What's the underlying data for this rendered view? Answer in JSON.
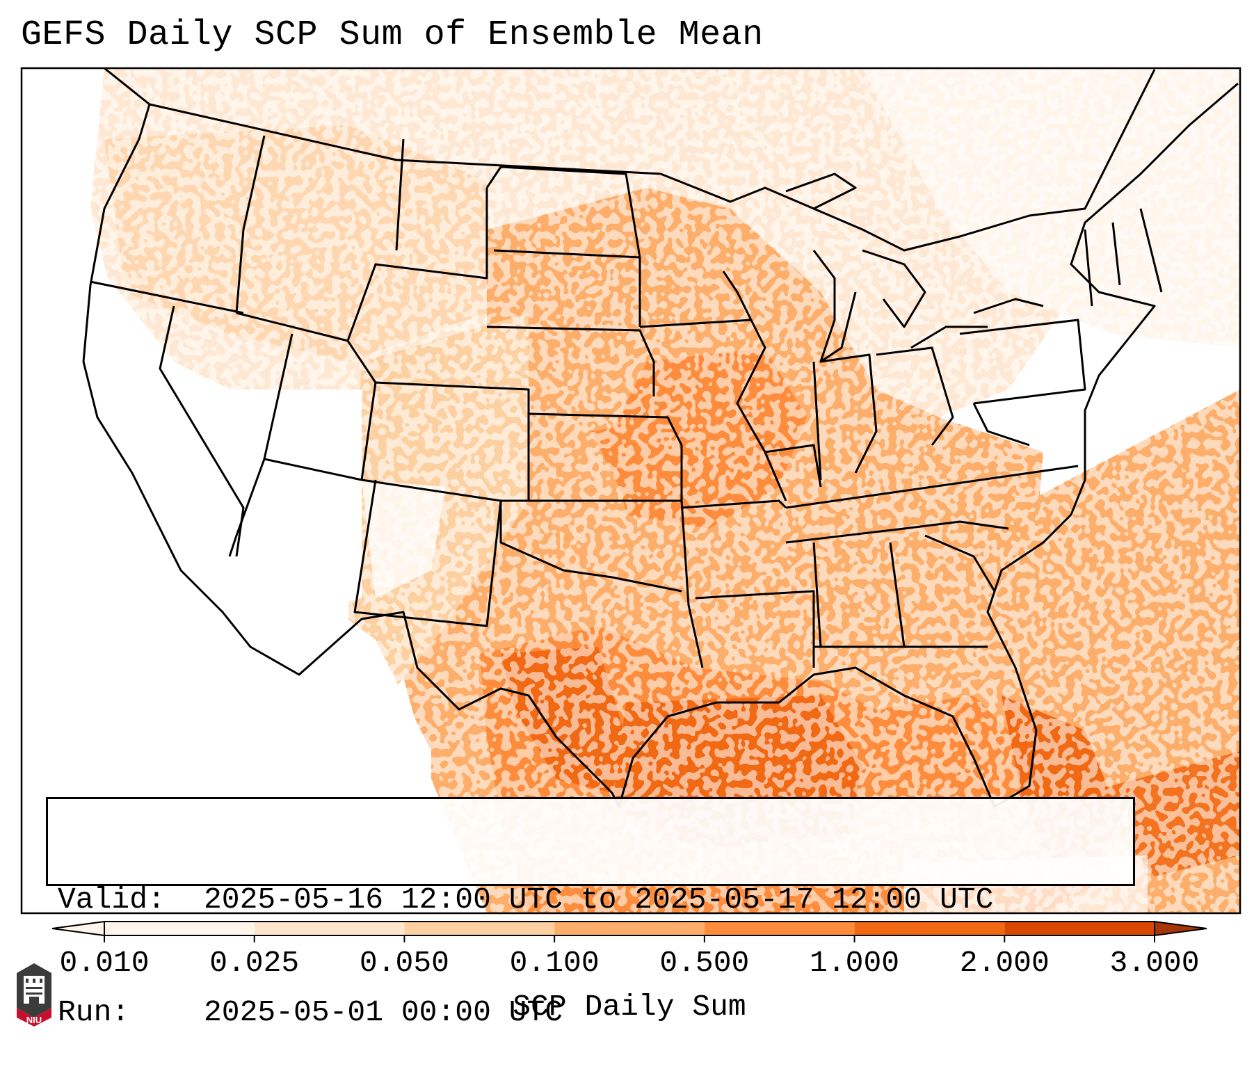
{
  "title": "GEFS Daily SCP Sum of Ensemble Mean",
  "info": {
    "valid_label": "Valid:",
    "valid_value": "2025-05-16 12:00 UTC to 2025-05-17 12:00 UTC",
    "run_label": "Run:",
    "run_value": "2025-05-01 00:00 UTC"
  },
  "colorbar": {
    "label": "SCP Daily Sum",
    "ticks": [
      "0.010",
      "0.025",
      "0.050",
      "0.100",
      "0.500",
      "1.000",
      "2.000",
      "3.000"
    ],
    "colors": [
      "#fff5eb",
      "#fee6ce",
      "#fdd0a2",
      "#fdae6b",
      "#fd8d3c",
      "#f16913",
      "#d94801",
      "#a63603"
    ],
    "extend": "both"
  },
  "logo": {
    "text": "NIU",
    "colors": {
      "dark": "#3b3b3b",
      "red": "#c8102e"
    }
  }
}
